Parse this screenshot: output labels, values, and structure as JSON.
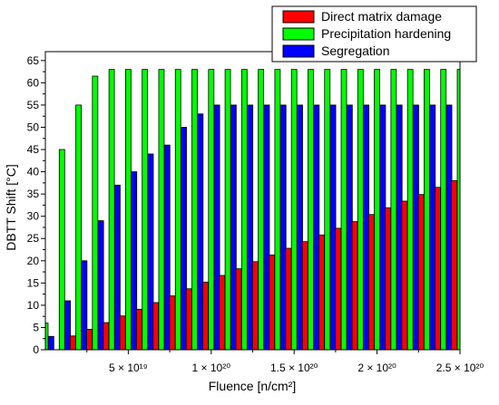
{
  "chart_data": {
    "type": "bar",
    "title": "",
    "xlabel": "Fluence [n/cm²]",
    "ylabel": "DBTT Shift [°C]",
    "ylim": [
      0,
      67
    ],
    "y_ticks": [
      0,
      5,
      10,
      15,
      20,
      25,
      30,
      35,
      40,
      45,
      50,
      55,
      60,
      65
    ],
    "x_tick_labels": [
      {
        "x": 5e+19,
        "label": "5 × 10¹⁹"
      },
      {
        "x": 1e+20,
        "label": "1 × 10²⁰"
      },
      {
        "x": 1.5e+20,
        "label": "1.5 × 10²⁰"
      },
      {
        "x": 2e+20,
        "label": "2 × 10²⁰"
      },
      {
        "x": 2.5e+20,
        "label": "2.5 × 10²⁰"
      }
    ],
    "xlim": [
      0,
      2.5e+20
    ],
    "grid": false,
    "legend_position": "top-right",
    "x": [
      0,
      1e+19,
      2e+19,
      3e+19,
      4e+19,
      5e+19,
      6e+19,
      7e+19,
      8e+19,
      9e+19,
      1e+20,
      1.1e+20,
      1.2e+20,
      1.3e+20,
      1.4e+20,
      1.5e+20,
      1.6e+20,
      1.7e+20,
      1.8e+20,
      1.9e+20,
      2e+20,
      2.1e+20,
      2.2e+20,
      2.3e+20,
      2.4e+20,
      2.5e+20
    ],
    "series": [
      {
        "name": "Direct matrix damage",
        "color": "#ff0000",
        "values": [
          0,
          0,
          3.1,
          4.6,
          6.1,
          7.6,
          9.1,
          10.6,
          12.1,
          13.7,
          15.2,
          16.7,
          18.2,
          19.8,
          21.3,
          22.8,
          24.3,
          25.8,
          27.3,
          28.8,
          30.4,
          31.9,
          33.4,
          34.9,
          36.5,
          38.0
        ]
      },
      {
        "name": "Precipitation hardening",
        "color": "#00ff00",
        "values": [
          6,
          45,
          55,
          61.5,
          63,
          63,
          63,
          63,
          63,
          63,
          63,
          63,
          63,
          63,
          63,
          63,
          63,
          63,
          63,
          63,
          63,
          63,
          63,
          63,
          63,
          63
        ]
      },
      {
        "name": "Segregation",
        "color": "#0000ff",
        "values": [
          3,
          11,
          20,
          29,
          37,
          40,
          44,
          46,
          50,
          53,
          55,
          55,
          55,
          55,
          55,
          55,
          55,
          55,
          55,
          55,
          55,
          55,
          55,
          55,
          55,
          55
        ]
      }
    ]
  }
}
